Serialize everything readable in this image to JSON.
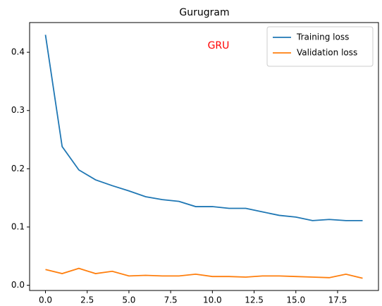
{
  "chart_data": {
    "type": "line",
    "title": "Gurugram",
    "annotation": "GRU",
    "annotation_color": "#ff0000",
    "x": [
      0,
      1,
      2,
      3,
      4,
      5,
      6,
      7,
      8,
      9,
      10,
      11,
      12,
      13,
      14,
      15,
      16,
      17,
      18,
      19
    ],
    "series": [
      {
        "name": "Training loss",
        "color": "#1f77b4",
        "values": [
          0.43,
          0.238,
          0.198,
          0.181,
          0.171,
          0.162,
          0.152,
          0.147,
          0.144,
          0.135,
          0.135,
          0.132,
          0.132,
          0.126,
          0.12,
          0.117,
          0.111,
          0.113,
          0.111,
          0.111
        ]
      },
      {
        "name": "Validation loss",
        "color": "#ff7f0e",
        "values": [
          0.027,
          0.02,
          0.029,
          0.02,
          0.024,
          0.016,
          0.017,
          0.016,
          0.016,
          0.019,
          0.015,
          0.015,
          0.014,
          0.016,
          0.016,
          0.015,
          0.014,
          0.013,
          0.019,
          0.012
        ]
      }
    ],
    "xlim": [
      -0.95,
      19.95
    ],
    "xticks": [
      {
        "value": 0,
        "label": "0.0"
      },
      2.5,
      {
        "value": 5,
        "label": "5.0"
      },
      7.5,
      {
        "value": 10,
        "label": "10.0"
      },
      12.5,
      {
        "value": 15,
        "label": "15.0"
      },
      17.5
    ],
    "ylim": [
      -0.009,
      0.451
    ],
    "yticks": [
      {
        "value": 0,
        "label": "0.0"
      },
      0.1,
      0.2,
      0.3,
      0.4
    ],
    "grid": false,
    "legend": "upper right"
  }
}
